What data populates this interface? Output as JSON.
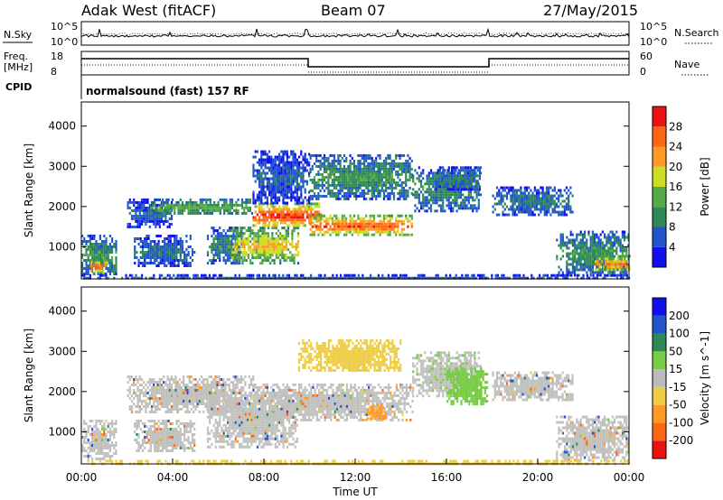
{
  "header": {
    "station": "Adak West (fitACF)",
    "beam": "Beam 07",
    "date": "27/May/2015"
  },
  "noise_panel": {
    "left_label": "N.Sky",
    "right_label": "N.Search",
    "y_top": "10^5",
    "y_bottom": "10^0",
    "right_top": "10^5",
    "right_bottom": "10^0"
  },
  "freq_panel": {
    "left_label_1": "Freq.",
    "left_label_2": "[MHz]",
    "right_label": "Nave",
    "y_top": "18",
    "y_bottom": "8",
    "right_top": "60",
    "right_bottom": "0"
  },
  "cpid": {
    "label": "CPID",
    "value": "normalsound (fast) 157 RF"
  },
  "colors": {
    "power": [
      "#1010ee",
      "#2255cc",
      "#2d8a55",
      "#55aa44",
      "#ccdd22",
      "#ff9922",
      "#ff6611",
      "#ee1111"
    ],
    "velocity": [
      "#ee1111",
      "#ff6611",
      "#ff9922",
      "#eecc44",
      "#bbbbbb",
      "#77cc44",
      "#2d8a55",
      "#2255cc",
      "#1010ee"
    ],
    "gray": "#c0c0be"
  },
  "chart_data": [
    {
      "type": "heatmap",
      "name": "Power",
      "ylabel": "Slant Range [km]",
      "ylim": [
        200,
        4600
      ],
      "yticks": [
        1000,
        2000,
        3000,
        4000
      ],
      "colorbar_label": "Power [dB]",
      "colorbar_ticks": [
        4,
        8,
        12,
        16,
        20,
        24,
        28
      ],
      "colorbar_range": [
        0,
        32
      ],
      "bands": [
        {
          "x": [
            0,
            1.5
          ],
          "range": [
            300,
            1300
          ],
          "value": 10
        },
        {
          "x": [
            0.4,
            1.1
          ],
          "range": [
            350,
            700
          ],
          "value": 24
        },
        {
          "x": [
            2.3,
            5
          ],
          "range": [
            500,
            1300
          ],
          "value": 7
        },
        {
          "x": [
            2,
            4
          ],
          "range": [
            1500,
            2200
          ],
          "value": 6
        },
        {
          "x": [
            3,
            7.5
          ],
          "range": [
            1800,
            2200
          ],
          "value": 12
        },
        {
          "x": [
            5.5,
            7
          ],
          "range": [
            600,
            1500
          ],
          "value": 9
        },
        {
          "x": [
            6.5,
            9.5
          ],
          "range": [
            600,
            1500
          ],
          "value": 18
        },
        {
          "x": [
            7.5,
            10.5
          ],
          "range": [
            1500,
            2100
          ],
          "value": 26
        },
        {
          "x": [
            10,
            14.5
          ],
          "range": [
            1300,
            1800
          ],
          "value": 24
        },
        {
          "x": [
            7.5,
            10
          ],
          "range": [
            2100,
            3400
          ],
          "value": 6
        },
        {
          "x": [
            10,
            14.5
          ],
          "range": [
            2200,
            3300
          ],
          "value": 10
        },
        {
          "x": [
            14.5,
            17.5
          ],
          "range": [
            1900,
            3000
          ],
          "value": 9
        },
        {
          "x": [
            15.5,
            17.5
          ],
          "range": [
            2400,
            3000
          ],
          "value": 8
        },
        {
          "x": [
            18,
            21.5
          ],
          "range": [
            1800,
            2500
          ],
          "value": 8
        },
        {
          "x": [
            20.8,
            24
          ],
          "range": [
            300,
            1400
          ],
          "value": 10
        },
        {
          "x": [
            22.5,
            24
          ],
          "range": [
            400,
            800
          ],
          "value": 22
        },
        {
          "x": [
            0,
            24
          ],
          "range": [
            200,
            320
          ],
          "value": 6
        }
      ]
    },
    {
      "type": "heatmap",
      "name": "Velocity",
      "xlabel": "Time UT",
      "ylabel": "Slant Range [km]",
      "ylim": [
        200,
        4600
      ],
      "yticks": [
        1000,
        2000,
        3000,
        4000
      ],
      "xlim": [
        0,
        24
      ],
      "xticks": [
        "00:00",
        "04:00",
        "08:00",
        "12:00",
        "16:00",
        "20:00",
        "00:00"
      ],
      "colorbar_label": "Velocity [m s^-1]",
      "colorbar_ticks": [
        -200,
        -100,
        -50,
        -15,
        15,
        50,
        100,
        200
      ],
      "bands": [
        {
          "x": [
            0,
            1.5
          ],
          "range": [
            300,
            1300
          ],
          "value": 0
        },
        {
          "x": [
            2.3,
            5
          ],
          "range": [
            500,
            1300
          ],
          "value": 0
        },
        {
          "x": [
            2,
            7.5
          ],
          "range": [
            1500,
            2400
          ],
          "value": 0
        },
        {
          "x": [
            5.5,
            9.5
          ],
          "range": [
            600,
            2000
          ],
          "value": 0
        },
        {
          "x": [
            7.5,
            14.5
          ],
          "range": [
            1300,
            2200
          ],
          "value": 0
        },
        {
          "x": [
            9.5,
            14
          ],
          "range": [
            2500,
            3300
          ],
          "value": -30
        },
        {
          "x": [
            14.5,
            17.5
          ],
          "range": [
            1900,
            3000
          ],
          "value": 5
        },
        {
          "x": [
            16,
            17.8
          ],
          "range": [
            1700,
            2600
          ],
          "value": 35
        },
        {
          "x": [
            18,
            21.5
          ],
          "range": [
            1800,
            2500
          ],
          "value": 0
        },
        {
          "x": [
            20.8,
            24
          ],
          "range": [
            300,
            1400
          ],
          "value": 0
        },
        {
          "x": [
            12.5,
            13.3
          ],
          "range": [
            1300,
            1700
          ],
          "value": -60
        },
        {
          "x": [
            0,
            24
          ],
          "range": [
            200,
            300
          ],
          "value": -30
        }
      ]
    }
  ]
}
